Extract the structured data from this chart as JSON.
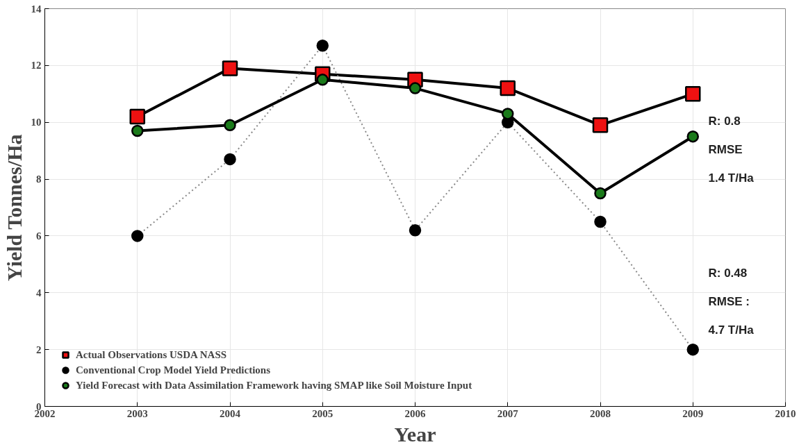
{
  "chart_data": {
    "type": "line",
    "xlabel": "Year",
    "ylabel": "Yield Tonnes/Ha",
    "x": [
      2003,
      2004,
      2005,
      2006,
      2007,
      2008,
      2009
    ],
    "series": [
      {
        "name": "Actual Observations USDA NASS",
        "color": "#ee1111",
        "marker": "square",
        "line_style": "solid",
        "values": [
          10.2,
          11.9,
          11.7,
          11.5,
          11.2,
          9.9,
          11.0
        ]
      },
      {
        "name": "Conventional Crop Model Yield Predictions",
        "color": "#000000",
        "marker": "circle",
        "line_style": "dotted",
        "values": [
          6.0,
          8.7,
          12.7,
          6.2,
          10.0,
          6.5,
          2.0
        ]
      },
      {
        "name": "Yield Forecast with Data Assimilation Framework having SMAP like Soil Moisture Input",
        "color": "#1a7a1a",
        "marker": "circle",
        "line_style": "solid",
        "values": [
          9.7,
          9.9,
          11.5,
          11.2,
          10.3,
          7.5,
          9.5
        ]
      }
    ],
    "xlim": [
      2002,
      2010
    ],
    "xticks": [
      2002,
      2003,
      2004,
      2005,
      2006,
      2007,
      2008,
      2009,
      2010
    ],
    "ylim": [
      0,
      14
    ],
    "yticks": [
      0,
      2,
      4,
      6,
      8,
      10,
      12,
      14
    ],
    "grid": true,
    "legend": "bottom left",
    "annotations": [
      "R: 0.8",
      "RMSE",
      "1.4 T/Ha",
      "R: 0.48",
      "RMSE :",
      "4.7 T/Ha"
    ]
  }
}
